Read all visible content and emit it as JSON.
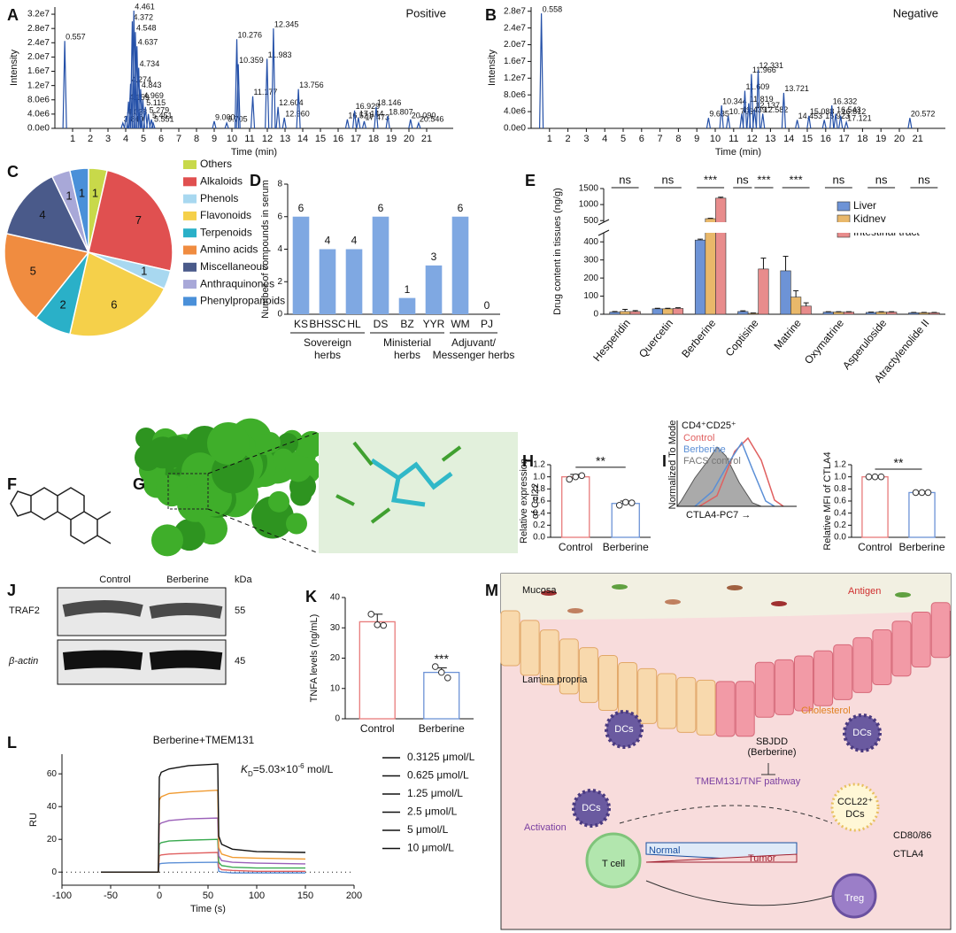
{
  "panel_letters": [
    "A",
    "B",
    "C",
    "D",
    "E",
    "F",
    "G",
    "H",
    "I",
    "J",
    "K",
    "L",
    "M"
  ],
  "chart_data": [
    {
      "type": "stem",
      "annotation": "Positive",
      "xlabel": "Time (min)",
      "ylabel": "Intensity",
      "color": "#2450a8",
      "xlim": [
        0,
        22.5
      ],
      "xticks": [
        1,
        2,
        3,
        4,
        5,
        6,
        7,
        8,
        9,
        10,
        11,
        12,
        13,
        14,
        15,
        16,
        17,
        18,
        19,
        20,
        21
      ],
      "ylim": [
        0,
        34000000
      ],
      "yticks": [
        {
          "value": 0,
          "label": "0.0e0"
        },
        {
          "value": 4000000,
          "label": "4.0e6"
        },
        {
          "value": 8000000,
          "label": "8.0e6"
        },
        {
          "value": 12000000,
          "label": "1.2e7"
        },
        {
          "value": 16000000,
          "label": "1.6e7"
        },
        {
          "value": 20000000,
          "label": "2.0e7"
        },
        {
          "value": 24000000,
          "label": "2.4e7"
        },
        {
          "value": 28000000,
          "label": "2.8e7"
        },
        {
          "value": 32000000,
          "label": "3.2e7"
        }
      ],
      "x": [
        0.557,
        3.84,
        4.028,
        4.159,
        4.274,
        4.372,
        4.461,
        4.548,
        4.637,
        4.734,
        4.843,
        4.969,
        5.115,
        5.279,
        5.451,
        5.551,
        9.0,
        9.705,
        10.276,
        10.359,
        11.177,
        11.983,
        12.345,
        12.604,
        12.96,
        13.756,
        16.521,
        16.929,
        17.144,
        17.473,
        18.146,
        18.807,
        20.09,
        20.546
      ],
      "x_labels": [
        "0.557",
        "3.840",
        "4.028",
        "4.159",
        "4.274",
        "4.372",
        "4.461",
        "4.548",
        "4.637",
        "4.734",
        "4.843",
        "4.969",
        "5.115",
        "5.279",
        "5.451",
        "5.551",
        "9.000",
        "9.705",
        "10.276",
        "10.359",
        "11.177",
        "11.983",
        "12.345",
        "12.604",
        "12.960",
        "13.756",
        "16.521",
        "16.929",
        "17.144",
        "17.473",
        "18.146",
        "18.807",
        "20.090",
        "20.546"
      ],
      "values": [
        24500000,
        1500000,
        3500000,
        7500000,
        12500000,
        30000000,
        33000000,
        27000000,
        23000000,
        17000000,
        11000000,
        8000000,
        6000000,
        4000000,
        2500000,
        1500000,
        2000000,
        1500000,
        25000000,
        18000000,
        9000000,
        19500000,
        28000000,
        6000000,
        3000000,
        11000000,
        2500000,
        5000000,
        3000000,
        2000000,
        6000000,
        3500000,
        2500000,
        1500000
      ]
    },
    {
      "type": "stem",
      "annotation": "Negative",
      "xlabel": "Time (min)",
      "ylabel": "Intensity",
      "color": "#2450a8",
      "xlim": [
        0,
        22.5
      ],
      "xticks": [
        1,
        2,
        3,
        4,
        5,
        6,
        7,
        8,
        9,
        10,
        11,
        12,
        13,
        14,
        15,
        16,
        17,
        18,
        19,
        20,
        21
      ],
      "ylim": [
        0,
        29000000
      ],
      "yticks": [
        {
          "value": 0,
          "label": "0.0e0"
        },
        {
          "value": 4000000,
          "label": "4.0e6"
        },
        {
          "value": 8000000,
          "label": "8.0e6"
        },
        {
          "value": 12000000,
          "label": "1.2e7"
        },
        {
          "value": 16000000,
          "label": "1.6e7"
        },
        {
          "value": 20000000,
          "label": "2.0e7"
        },
        {
          "value": 24000000,
          "label": "2.4e7"
        },
        {
          "value": 28000000,
          "label": "2.8e7"
        }
      ],
      "x": [
        0.558,
        9.635,
        10.344,
        10.703,
        11.439,
        11.609,
        11.819,
        11.966,
        12.137,
        12.331,
        12.582,
        13.721,
        14.453,
        15.088,
        15.923,
        16.332,
        16.543,
        16.812,
        17.121,
        20.572
      ],
      "x_labels": [
        "0.558",
        "9.635",
        "10.344",
        "10.703",
        "11.439",
        "11.609",
        "11.819",
        "11.966",
        "12.137",
        "12.331",
        "12.582",
        "13.721",
        "14.453",
        "15.088",
        "15.923",
        "16.332",
        "16.543",
        "16.812",
        "17.121",
        "20.572"
      ],
      "values": [
        27500000,
        2500000,
        5500000,
        3000000,
        3500000,
        9000000,
        6000000,
        13000000,
        4500000,
        14000000,
        3500000,
        8500000,
        2000000,
        3000000,
        2000000,
        5500000,
        3500000,
        3000000,
        1500000,
        2500000
      ]
    },
    {
      "type": "pie",
      "categories": [
        "Others",
        "Alkaloids",
        "Phenols",
        "Flavonoids",
        "Terpenoids",
        "Amino acids",
        "Miscellaneous",
        "Anthraquinones",
        "Phenylpropanoids"
      ],
      "values": [
        1,
        7,
        1,
        6,
        2,
        5,
        4,
        1,
        1
      ],
      "colors": [
        "#c8d94a",
        "#e05050",
        "#a8d8f0",
        "#f5d04a",
        "#2ab0c8",
        "#f08c40",
        "#4a5a8a",
        "#a8a8d8",
        "#4a90d9"
      ]
    },
    {
      "type": "bar",
      "ylabel": "Number of compounds in serum",
      "categories": [
        "KS",
        "BHSSC",
        "HL",
        "DS",
        "BZ",
        "YYR",
        "WM",
        "PJ"
      ],
      "values": [
        6,
        4,
        4,
        6,
        1,
        3,
        6,
        0
      ],
      "color": "#7fa8e2",
      "data_labels": true,
      "ylim": [
        0,
        8
      ],
      "yticks": [
        0,
        2,
        4,
        6,
        8
      ],
      "groups": [
        {
          "label": [
            "Sovereign",
            "herbs"
          ],
          "categories": [
            "KS",
            "BHSSC",
            "HL"
          ]
        },
        {
          "label": [
            "Ministerial",
            "herbs"
          ],
          "categories": [
            "DS",
            "BZ",
            "YYR"
          ]
        },
        {
          "label": [
            "Adjuvant/",
            "Messenger herbs"
          ],
          "categories": [
            "WM",
            "PJ"
          ]
        }
      ]
    },
    {
      "type": "grouped_bar",
      "ylabel": "Drug content in tissues (ng/g)",
      "categories": [
        "Hesperidin",
        "Quercetin",
        "Berberine",
        "Coptisine",
        "Matrine",
        "Oxymatrine",
        "Asperuloside",
        "Atractylenolide II"
      ],
      "ylim": [
        0,
        1500
      ],
      "ybreak": 450,
      "yticks": [
        0,
        100,
        200,
        300,
        400,
        500,
        1000,
        1500
      ],
      "legend": "upper right",
      "series": [
        {
          "name": "Liver",
          "color": "#6d93d6",
          "values": [
            12,
            30,
            410,
            15,
            240,
            12,
            10,
            8
          ],
          "errors": [
            3,
            3,
            5,
            4,
            80,
            2,
            2,
            2
          ]
        },
        {
          "name": "Kidney",
          "color": "#e9b86a",
          "values": [
            15,
            30,
            560,
            5,
            95,
            12,
            12,
            8
          ],
          "errors": [
            12,
            3,
            12,
            2,
            35,
            2,
            2,
            2
          ]
        },
        {
          "name": "Intestinal tract",
          "color": "#e88c8c",
          "values": [
            15,
            32,
            1200,
            250,
            45,
            12,
            12,
            8
          ],
          "errors": [
            5,
            4,
            30,
            60,
            18,
            2,
            2,
            2
          ]
        }
      ],
      "significance": [
        [
          "ns"
        ],
        [
          "ns"
        ],
        [
          "***"
        ],
        [
          "ns",
          "***"
        ],
        [
          "***"
        ],
        [
          "ns"
        ],
        [
          "ns"
        ],
        [
          "ns"
        ]
      ]
    },
    {
      "type": "bar",
      "ylabel": [
        "Relative expression",
        "of Ccl22"
      ],
      "categories": [
        "Control",
        "Berberine"
      ],
      "values": [
        1.0,
        0.56
      ],
      "errors": [
        0.04,
        0.04
      ],
      "points": [
        [
          0.96,
          1.0,
          1.02
        ],
        [
          0.53,
          0.58,
          0.57
        ]
      ],
      "colors": [
        "#e87b7b",
        "#6d93d6"
      ],
      "significance": "**",
      "ylim": [
        0,
        1.2
      ],
      "yticks": [
        {
          "value": 0,
          "label": "0.0"
        },
        0.2,
        0.4,
        0.6,
        0.8,
        {
          "value": 1,
          "label": "1.0"
        },
        {
          "value": 1.2,
          "label": "1.2"
        }
      ]
    },
    {
      "type": "bar",
      "ylabel": [
        "Relative MFI of CTLA4"
      ],
      "categories": [
        "Control",
        "Berberine"
      ],
      "values": [
        1.0,
        0.74
      ],
      "errors": [
        0.01,
        0.01
      ],
      "points": [
        [
          1.0,
          1.0,
          1.0
        ],
        [
          0.74,
          0.74,
          0.74
        ]
      ],
      "colors": [
        "#e87b7b",
        "#6d93d6"
      ],
      "significance": "**",
      "ylim": [
        0,
        1.2
      ],
      "yticks": [
        {
          "value": 0,
          "label": "0.0"
        },
        0.2,
        0.4,
        0.6,
        0.8,
        {
          "value": 1,
          "label": "1.0"
        },
        {
          "value": 1.2,
          "label": "1.2"
        }
      ]
    },
    {
      "type": "bar",
      "ylabel": [
        "TNFA levels (ng/mL)"
      ],
      "categories": [
        "Control",
        "Berberine"
      ],
      "values": [
        32,
        15.3
      ],
      "errors": [
        2.5,
        1.5
      ],
      "points": [
        [
          34.5,
          31,
          30.8
        ],
        [
          17.2,
          15.3,
          13.5
        ]
      ],
      "colors": [
        "#e87b7b",
        "#6d93d6"
      ],
      "annotations": [
        null,
        "***"
      ],
      "ylim": [
        0,
        40
      ],
      "yticks": [
        0,
        10,
        20,
        30,
        40
      ]
    },
    {
      "type": "line",
      "title": "Berberine+TMEM131",
      "kd": {
        "symbol": "K",
        "subscript": "D",
        "text": "=5.03×10",
        "exponent": "-6",
        "unit": " mol/L"
      },
      "xlabel": "Time (s)",
      "ylabel": "RU",
      "xlim": [
        -100,
        200
      ],
      "xticks": [
        -100,
        -50,
        0,
        50,
        100,
        150,
        200
      ],
      "ylim": [
        -8,
        72
      ],
      "yticks": [
        0,
        20,
        40,
        60
      ],
      "x": [
        -60,
        -1,
        0,
        2,
        10,
        30,
        60,
        61,
        64,
        75,
        100,
        150
      ],
      "series": [
        {
          "name": "0.3125 μmol/L",
          "color": "#5b8fd6",
          "values": [
            0,
            0,
            5,
            5.3,
            5.6,
            5.8,
            6,
            0.5,
            0,
            -0.5,
            -0.5,
            -0.5
          ]
        },
        {
          "name": "0.625 μmol/L",
          "color": "#e06060",
          "values": [
            0,
            0,
            10,
            10.5,
            11,
            11.5,
            12,
            3,
            1.5,
            1,
            0.5,
            0.5
          ]
        },
        {
          "name": "1.25 μmol/L",
          "color": "#3aaa50",
          "values": [
            0,
            0,
            17,
            18,
            19,
            19.5,
            20,
            6,
            4,
            3,
            2.5,
            2.5
          ]
        },
        {
          "name": "2.5 μmol/L",
          "color": "#9a5fb8",
          "values": [
            0,
            0,
            29,
            30,
            31.5,
            32.5,
            33,
            10,
            7,
            6,
            5.5,
            5
          ]
        },
        {
          "name": "5 μmol/L",
          "color": "#f09a30",
          "values": [
            0,
            0,
            44,
            46,
            48,
            49,
            50,
            15,
            11,
            9,
            8.5,
            8
          ]
        },
        {
          "name": "10 μmol/L",
          "color": "#111111",
          "values": [
            0,
            0,
            58,
            61,
            63,
            65,
            66,
            22,
            17,
            14,
            12.5,
            12
          ]
        }
      ]
    }
  ],
  "flow_histogram": {
    "title": "CD4⁺CD25⁺",
    "legend": [
      "Control",
      "Berberine",
      "FACS control"
    ],
    "ylabel": "Normalized To Mode",
    "xlabel": "CTLA4-PC7 →"
  },
  "western_blot": {
    "lanes": [
      "Control",
      "Berberine"
    ],
    "unit": "kDa",
    "rows": [
      {
        "protein": "TRAF2",
        "size": "55"
      },
      {
        "protein": "β-actin",
        "size": "45"
      }
    ]
  },
  "model_diagram": {
    "mucosa": "Mucosa",
    "antigen": "Antigen",
    "lamina": "Lamina propria",
    "dcs": [
      "DCs",
      "DCs",
      "DCs"
    ],
    "cholesterol": "Cholesterol",
    "drug": [
      "SBJDD",
      "(Berberine)"
    ],
    "pathway": "TMEM131/TNF pathway",
    "ccl22": [
      "CCL22⁺",
      "DCs"
    ],
    "markers": [
      "CD80/86",
      "CTLA4"
    ],
    "activation": "Activation",
    "tcell": "T cell",
    "treg": "Treg",
    "normal": "Normal",
    "tumor": "Tumor"
  }
}
